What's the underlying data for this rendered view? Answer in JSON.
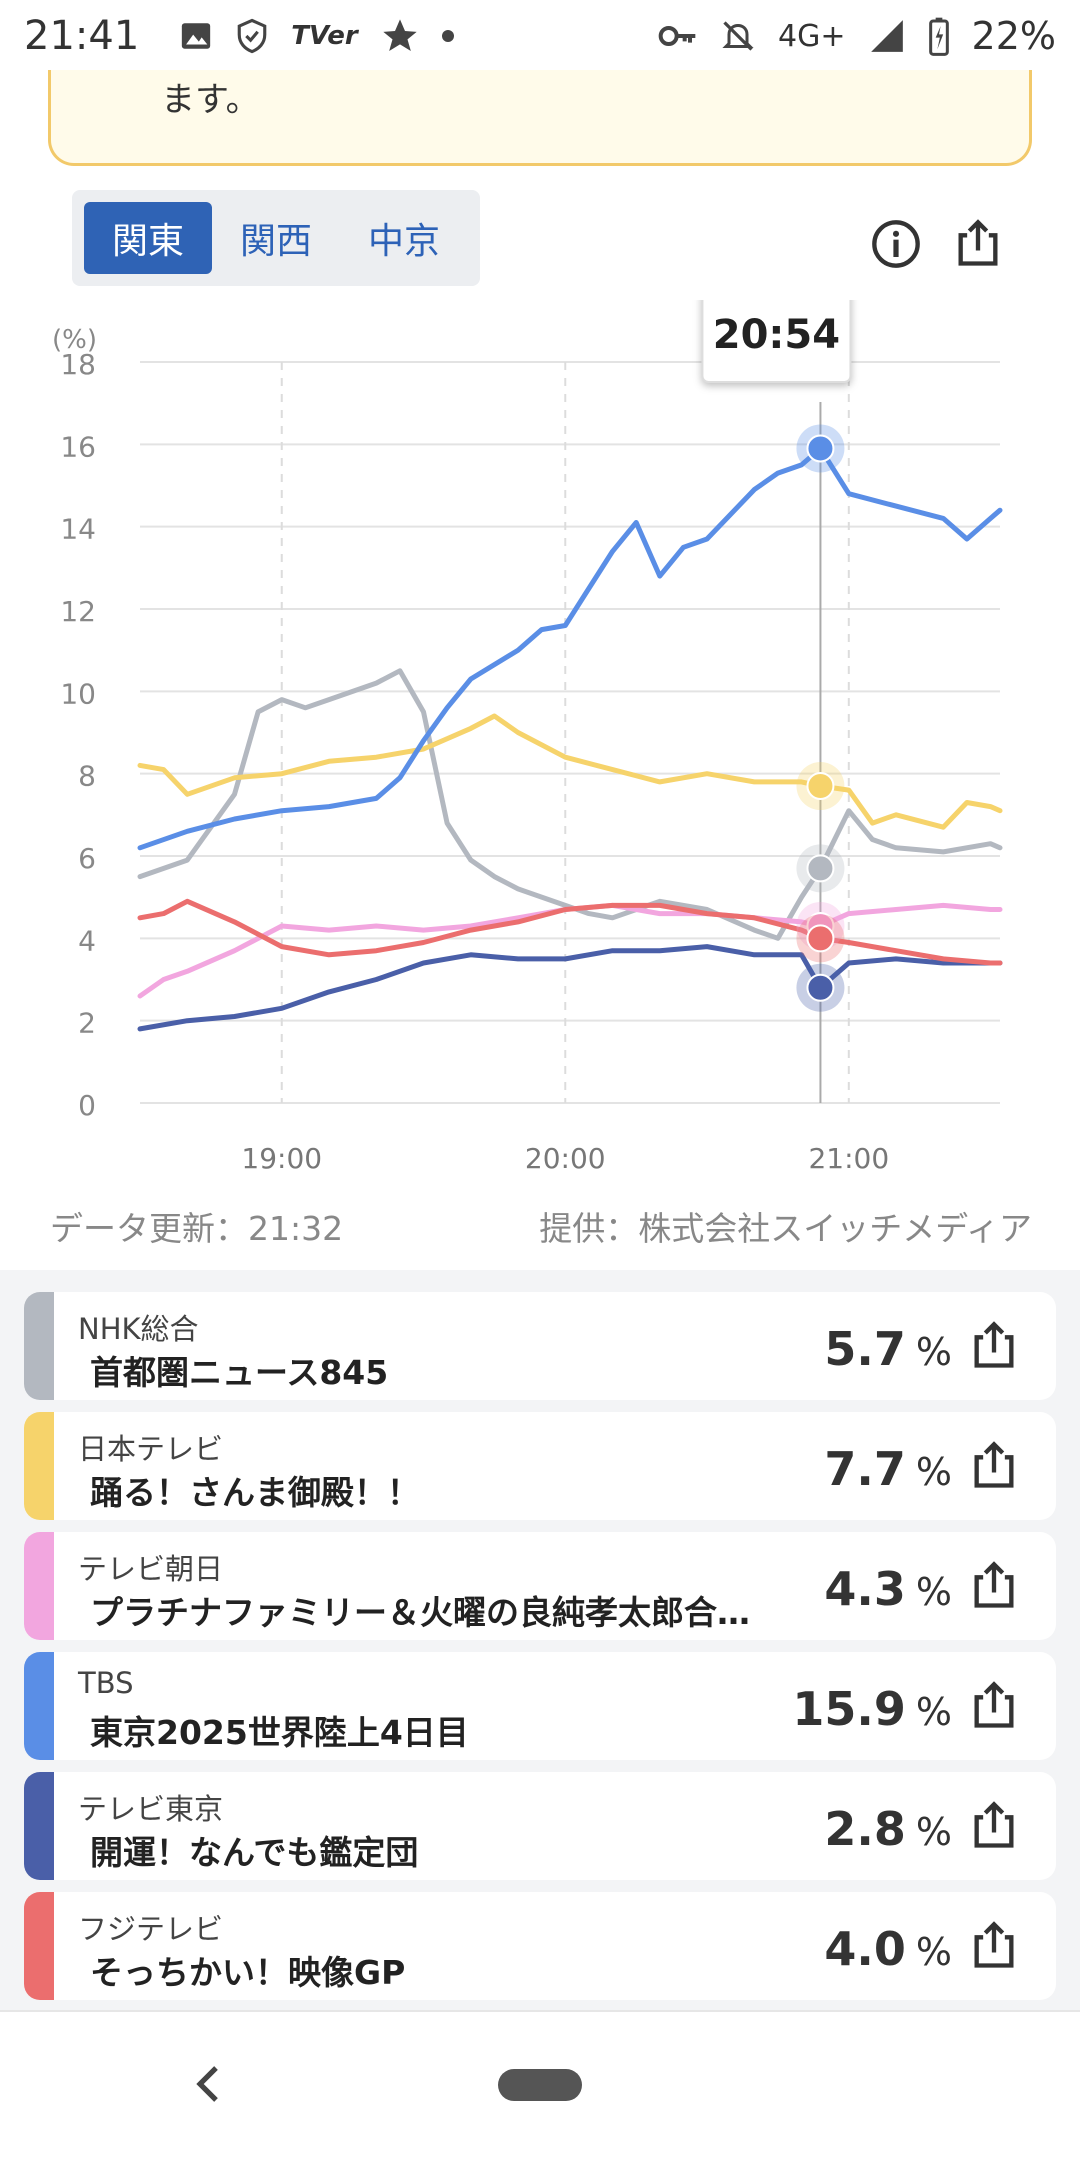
{
  "status_bar": {
    "time": "21:41",
    "tver_label": "TVer",
    "network_label": "4G+",
    "battery_label": "22%"
  },
  "notice": {
    "text": "ます。"
  },
  "region_tabs": [
    {
      "label": "関東",
      "active": true
    },
    {
      "label": "関西",
      "active": false
    },
    {
      "label": "中京",
      "active": false
    }
  ],
  "footer": {
    "updated": "データ更新：21:32",
    "provider": "提供：株式会社スイッチメディア"
  },
  "chart_data": {
    "type": "line",
    "ylabel": "(%)",
    "ylim": [
      0,
      18
    ],
    "yticks": [
      "0",
      "2",
      "4",
      "6",
      "8",
      "10",
      "12",
      "14",
      "16",
      "18"
    ],
    "x_range": [
      "18:30",
      "21:32"
    ],
    "xticks": [
      "19:00",
      "20:00",
      "21:00"
    ],
    "hover_time": "20:54",
    "series": [
      {
        "name": "NHK総合",
        "color": "#b3b8c0",
        "x": [
          "18:30",
          "18:40",
          "18:50",
          "18:55",
          "19:00",
          "19:05",
          "19:10",
          "19:20",
          "19:25",
          "19:30",
          "19:35",
          "19:40",
          "19:45",
          "19:50",
          "20:00",
          "20:05",
          "20:10",
          "20:20",
          "20:30",
          "20:40",
          "20:45",
          "20:50",
          "20:54",
          "21:00",
          "21:05",
          "21:10",
          "21:20",
          "21:30",
          "21:32"
        ],
        "values": [
          5.5,
          5.9,
          7.5,
          9.5,
          9.8,
          9.6,
          9.8,
          10.2,
          10.5,
          9.5,
          6.8,
          5.9,
          5.5,
          5.2,
          4.8,
          4.6,
          4.5,
          4.9,
          4.7,
          4.2,
          4.0,
          5.0,
          5.7,
          7.1,
          6.4,
          6.2,
          6.1,
          6.3,
          6.2
        ]
      },
      {
        "name": "日本テレビ",
        "color": "#f6d36b",
        "x": [
          "18:30",
          "18:35",
          "18:40",
          "18:50",
          "19:00",
          "19:10",
          "19:20",
          "19:30",
          "19:40",
          "19:45",
          "19:50",
          "20:00",
          "20:10",
          "20:20",
          "20:30",
          "20:40",
          "20:50",
          "20:54",
          "21:00",
          "21:05",
          "21:10",
          "21:20",
          "21:25",
          "21:30",
          "21:32"
        ],
        "values": [
          8.2,
          8.1,
          7.5,
          7.9,
          8.0,
          8.3,
          8.4,
          8.6,
          9.1,
          9.4,
          9.0,
          8.4,
          8.1,
          7.8,
          8.0,
          7.8,
          7.8,
          7.7,
          7.6,
          6.8,
          7.0,
          6.7,
          7.3,
          7.2,
          7.1
        ]
      },
      {
        "name": "テレビ朝日",
        "color": "#f2a6df",
        "x": [
          "18:30",
          "18:35",
          "18:40",
          "18:50",
          "19:00",
          "19:10",
          "19:20",
          "19:30",
          "19:40",
          "19:50",
          "20:00",
          "20:10",
          "20:20",
          "20:30",
          "20:40",
          "20:50",
          "20:54",
          "21:00",
          "21:10",
          "21:20",
          "21:30",
          "21:32"
        ],
        "values": [
          2.6,
          3.0,
          3.2,
          3.7,
          4.3,
          4.2,
          4.3,
          4.2,
          4.3,
          4.5,
          4.7,
          4.8,
          4.6,
          4.6,
          4.5,
          4.4,
          4.3,
          4.6,
          4.7,
          4.8,
          4.7,
          4.7
        ]
      },
      {
        "name": "TBS",
        "color": "#5a8ee6",
        "x": [
          "18:30",
          "18:40",
          "18:50",
          "19:00",
          "19:10",
          "19:20",
          "19:25",
          "19:30",
          "19:35",
          "19:40",
          "19:50",
          "19:55",
          "20:00",
          "20:05",
          "20:10",
          "20:15",
          "20:20",
          "20:25",
          "20:30",
          "20:40",
          "20:45",
          "20:50",
          "20:54",
          "21:00",
          "21:10",
          "21:20",
          "21:25",
          "21:30",
          "21:32"
        ],
        "values": [
          6.2,
          6.6,
          6.9,
          7.1,
          7.2,
          7.4,
          7.9,
          8.8,
          9.6,
          10.3,
          11.0,
          11.5,
          11.6,
          12.5,
          13.4,
          14.1,
          12.8,
          13.5,
          13.7,
          14.9,
          15.3,
          15.5,
          15.9,
          14.8,
          14.5,
          14.2,
          13.7,
          14.2,
          14.4
        ]
      },
      {
        "name": "テレビ東京",
        "color": "#4a5fa8",
        "x": [
          "18:30",
          "18:40",
          "18:50",
          "19:00",
          "19:10",
          "19:20",
          "19:30",
          "19:40",
          "19:50",
          "20:00",
          "20:10",
          "20:20",
          "20:30",
          "20:40",
          "20:50",
          "20:54",
          "21:00",
          "21:10",
          "21:20",
          "21:30",
          "21:32"
        ],
        "values": [
          1.8,
          2.0,
          2.1,
          2.3,
          2.7,
          3.0,
          3.4,
          3.6,
          3.5,
          3.5,
          3.7,
          3.7,
          3.8,
          3.6,
          3.6,
          2.8,
          3.4,
          3.5,
          3.4,
          3.4,
          3.4
        ]
      },
      {
        "name": "フジテレビ",
        "color": "#eb6e6e",
        "x": [
          "18:30",
          "18:35",
          "18:40",
          "18:50",
          "19:00",
          "19:10",
          "19:20",
          "19:30",
          "19:40",
          "19:50",
          "20:00",
          "20:10",
          "20:20",
          "20:30",
          "20:40",
          "20:50",
          "20:54",
          "21:00",
          "21:10",
          "21:20",
          "21:30",
          "21:32"
        ],
        "values": [
          4.5,
          4.6,
          4.9,
          4.4,
          3.8,
          3.6,
          3.7,
          3.9,
          4.2,
          4.4,
          4.7,
          4.8,
          4.8,
          4.6,
          4.5,
          4.2,
          4.0,
          3.9,
          3.7,
          3.5,
          3.4,
          3.4
        ]
      }
    ]
  },
  "programs": [
    {
      "station": "NHK総合",
      "title": "首都圏ニュース845",
      "rating": "5.7",
      "unit": "%",
      "color": "#b3b8c0"
    },
    {
      "station": "日本テレビ",
      "title": "踊る！さんま御殿！！",
      "rating": "7.7",
      "unit": "%",
      "color": "#f6d36b"
    },
    {
      "station": "テレビ朝日",
      "title": "プラチナファミリー＆火曜の良純孝太郎合…",
      "rating": "4.3",
      "unit": "%",
      "color": "#f2a6df"
    },
    {
      "station": "TBS",
      "title": "東京2025世界陸上4日目",
      "rating": "15.9",
      "unit": "%",
      "color": "#5a8ee6"
    },
    {
      "station": "テレビ東京",
      "title": "開運！なんでも鑑定団",
      "rating": "2.8",
      "unit": "%",
      "color": "#4a5fa8"
    },
    {
      "station": "フジテレビ",
      "title": "そっちかい！映像GP",
      "rating": "4.0",
      "unit": "%",
      "color": "#eb6e6e"
    }
  ]
}
